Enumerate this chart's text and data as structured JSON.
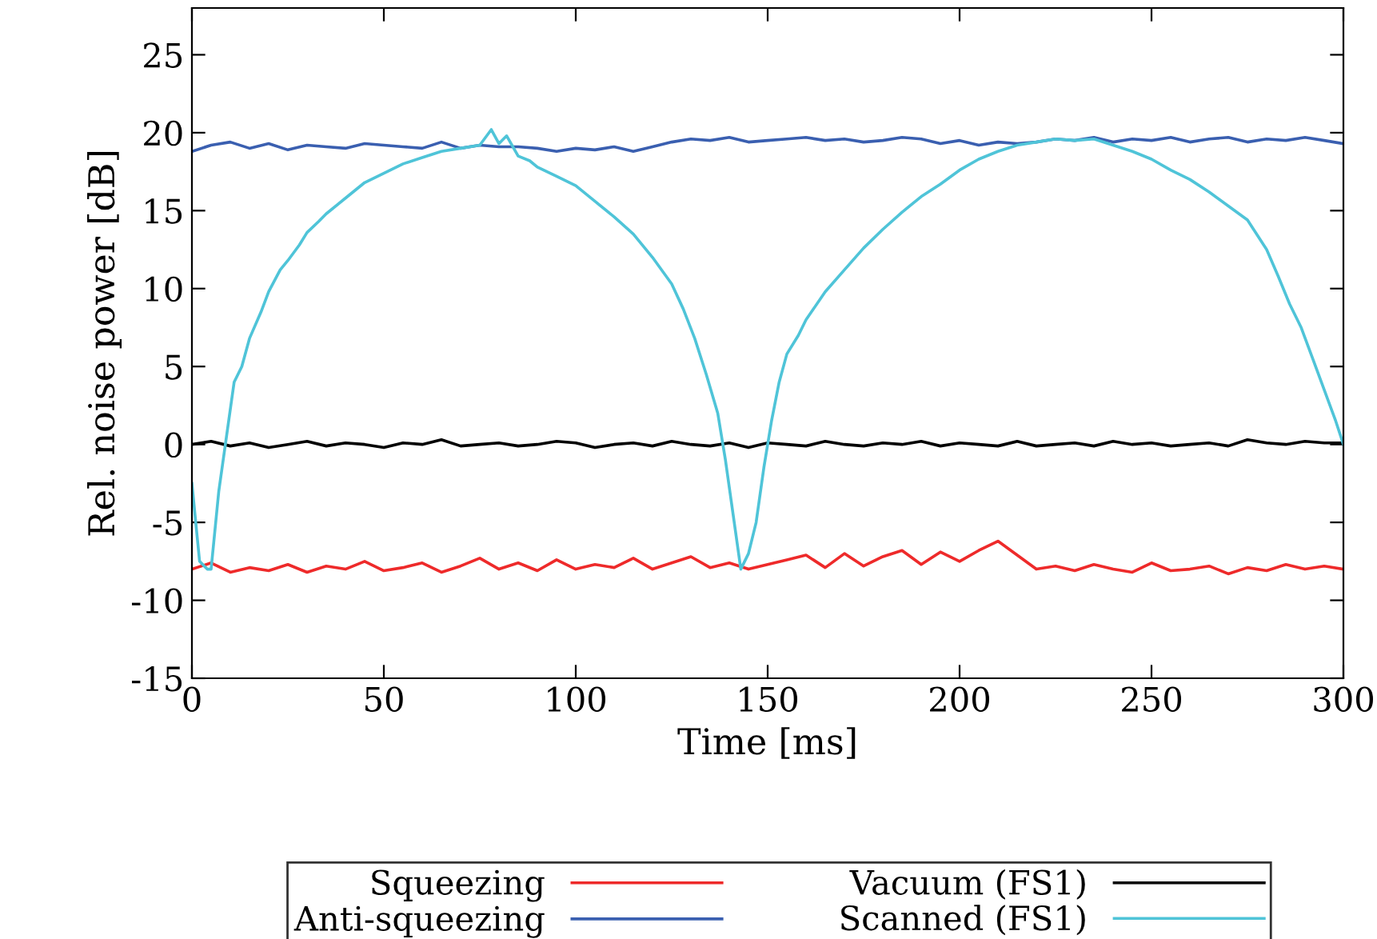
{
  "chart_data": {
    "type": "line",
    "xlabel": "Time [ms]",
    "ylabel": "Rel. noise power [dB]",
    "xlim": [
      0,
      300
    ],
    "ylim": [
      -15,
      28
    ],
    "xticks": [
      0,
      50,
      100,
      150,
      200,
      250,
      300
    ],
    "yticks": [
      -15,
      -10,
      -5,
      0,
      5,
      10,
      15,
      20,
      25
    ],
    "grid": false,
    "legend": "bottom",
    "marker": "none",
    "line_style": "solid",
    "x": [
      0,
      5,
      10,
      15,
      20,
      25,
      30,
      35,
      40,
      45,
      50,
      55,
      60,
      65,
      70,
      75,
      80,
      85,
      90,
      95,
      100,
      105,
      110,
      115,
      120,
      125,
      130,
      135,
      140,
      145,
      150,
      155,
      160,
      165,
      170,
      175,
      180,
      185,
      190,
      195,
      200,
      205,
      210,
      215,
      220,
      225,
      230,
      235,
      240,
      245,
      250,
      255,
      260,
      265,
      270,
      275,
      280,
      285,
      290,
      295,
      300
    ],
    "series": [
      {
        "name": "Squeezing",
        "color": "#ee2a2a",
        "values": [
          -8.0,
          -7.6,
          -8.2,
          -7.9,
          -8.1,
          -7.7,
          -8.2,
          -7.8,
          -8.0,
          -7.5,
          -8.1,
          -7.9,
          -7.6,
          -8.2,
          -7.8,
          -7.3,
          -8.0,
          -7.6,
          -8.1,
          -7.4,
          -8.0,
          -7.7,
          -7.9,
          -7.3,
          -8.0,
          -7.6,
          -7.2,
          -7.9,
          -7.6,
          -8.0,
          -7.7,
          -7.4,
          -7.1,
          -7.9,
          -7.0,
          -7.8,
          -7.2,
          -6.8,
          -7.7,
          -6.9,
          -7.5,
          -6.8,
          -6.2,
          -7.1,
          -8.0,
          -7.8,
          -8.1,
          -7.7,
          -8.0,
          -8.2,
          -7.6,
          -8.1,
          -8.0,
          -7.8,
          -8.3,
          -7.9,
          -8.1,
          -7.7,
          -8.0,
          -7.8,
          -8.0
        ]
      },
      {
        "name": "Anti-squeezing",
        "color": "#3a5fb0",
        "values": [
          18.8,
          19.2,
          19.4,
          19.0,
          19.3,
          18.9,
          19.2,
          19.1,
          19.0,
          19.3,
          19.2,
          19.1,
          19.0,
          19.4,
          19.0,
          19.2,
          19.1,
          19.1,
          19.0,
          18.8,
          19.0,
          18.9,
          19.1,
          18.8,
          19.1,
          19.4,
          19.6,
          19.5,
          19.7,
          19.4,
          19.5,
          19.6,
          19.7,
          19.5,
          19.6,
          19.4,
          19.5,
          19.7,
          19.6,
          19.3,
          19.5,
          19.2,
          19.4,
          19.3,
          19.4,
          19.6,
          19.5,
          19.7,
          19.4,
          19.6,
          19.5,
          19.7,
          19.4,
          19.6,
          19.7,
          19.4,
          19.6,
          19.5,
          19.7,
          19.5,
          19.3
        ]
      },
      {
        "name": "Vacuum (FS1)",
        "color": "#000000",
        "values": [
          0.0,
          0.2,
          -0.1,
          0.1,
          -0.2,
          0.0,
          0.2,
          -0.1,
          0.1,
          0.0,
          -0.2,
          0.1,
          0.0,
          0.3,
          -0.1,
          0.0,
          0.1,
          -0.1,
          0.0,
          0.2,
          0.1,
          -0.2,
          0.0,
          0.1,
          -0.1,
          0.2,
          0.0,
          -0.1,
          0.1,
          -0.2,
          0.1,
          0.0,
          -0.1,
          0.2,
          0.0,
          -0.1,
          0.1,
          0.0,
          0.2,
          -0.1,
          0.1,
          0.0,
          -0.1,
          0.2,
          -0.1,
          0.0,
          0.1,
          -0.1,
          0.2,
          0.0,
          0.1,
          -0.1,
          0.0,
          0.1,
          -0.1,
          0.3,
          0.1,
          0.0,
          0.2,
          0.1,
          0.1
        ]
      },
      {
        "name": "Scanned (FS1)",
        "color": "#4fc4d8",
        "x": [
          0,
          2,
          4,
          5,
          7,
          9,
          11,
          13,
          15,
          18,
          20,
          23,
          25,
          28,
          30,
          33,
          35,
          40,
          45,
          50,
          55,
          60,
          65,
          70,
          75,
          78,
          80,
          82,
          85,
          88,
          90,
          95,
          100,
          105,
          110,
          115,
          120,
          125,
          128,
          131,
          134,
          137,
          139,
          141,
          143,
          145,
          147,
          149,
          151,
          153,
          155,
          158,
          160,
          165,
          170,
          175,
          180,
          185,
          190,
          195,
          200,
          205,
          210,
          215,
          220,
          225,
          230,
          235,
          240,
          245,
          250,
          255,
          260,
          265,
          270,
          275,
          280,
          283,
          286,
          289,
          292,
          295,
          298,
          300
        ],
        "values": [
          -2.5,
          -7.5,
          -8.0,
          -8.0,
          -3.0,
          0.5,
          4.0,
          5.0,
          6.8,
          8.5,
          9.8,
          11.2,
          11.8,
          12.8,
          13.6,
          14.3,
          14.8,
          15.8,
          16.8,
          17.4,
          18.0,
          18.4,
          18.8,
          19.0,
          19.2,
          20.2,
          19.3,
          19.8,
          18.5,
          18.2,
          17.8,
          17.2,
          16.6,
          15.6,
          14.6,
          13.5,
          12.0,
          10.3,
          8.7,
          6.8,
          4.5,
          2.0,
          -1.0,
          -4.5,
          -8.0,
          -7.0,
          -5.0,
          -1.5,
          1.5,
          4.0,
          5.8,
          7.0,
          8.0,
          9.8,
          11.2,
          12.6,
          13.8,
          14.9,
          15.9,
          16.7,
          17.6,
          18.3,
          18.8,
          19.2,
          19.4,
          19.6,
          19.5,
          19.6,
          19.2,
          18.8,
          18.3,
          17.6,
          17.0,
          16.2,
          15.3,
          14.4,
          12.5,
          10.8,
          9.0,
          7.5,
          5.5,
          3.5,
          1.5,
          0.0
        ]
      }
    ]
  }
}
